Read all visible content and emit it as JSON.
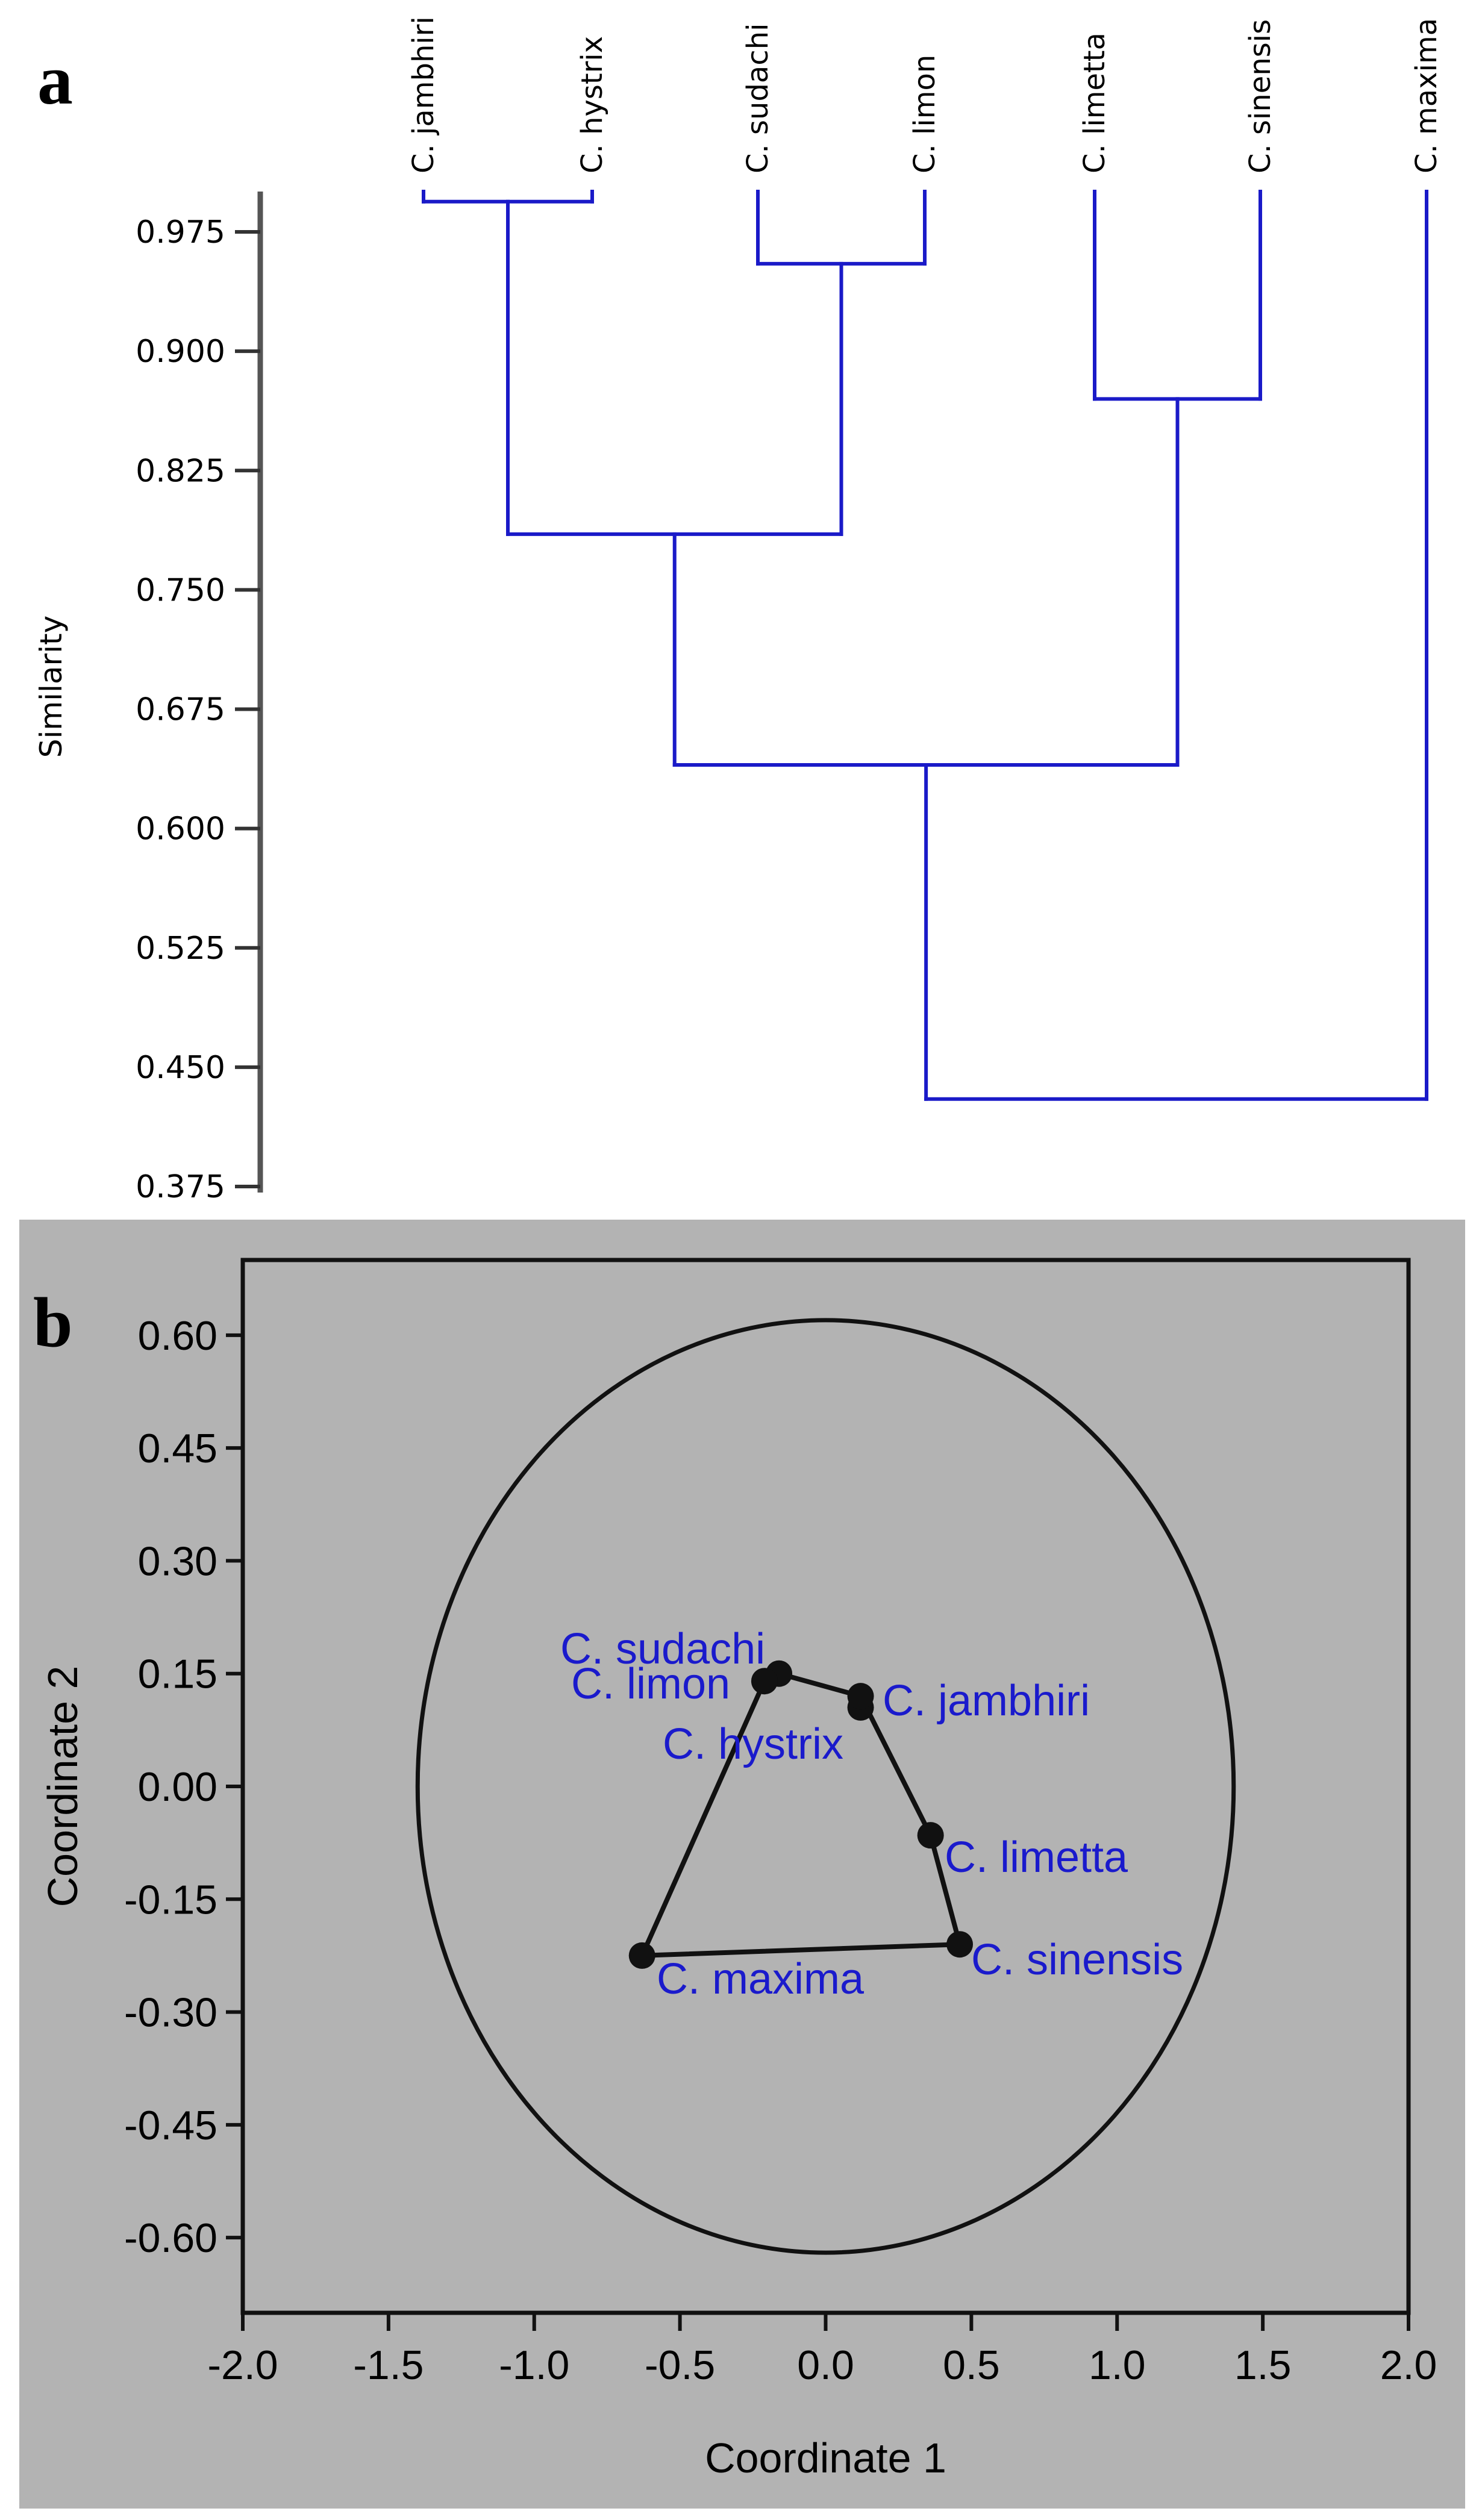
{
  "panels": {
    "a": "a",
    "b": "b"
  },
  "chart_data": [
    {
      "type": "dendrogram",
      "ylabel": "Similarity",
      "ylim": [
        0.375,
        0.99
      ],
      "yticks": [
        "0.975",
        "0.900",
        "0.825",
        "0.750",
        "0.675",
        "0.600",
        "0.525",
        "0.450",
        "0.375"
      ],
      "leaves": [
        "C. jambhiri",
        "C. hystrix",
        "C. sudachi",
        "C. limon",
        "C. limetta",
        "C. sinensis",
        "C. maxima"
      ],
      "merges": [
        {
          "left": 0,
          "right": 1,
          "similarity": 0.994
        },
        {
          "left": 2,
          "right": 3,
          "similarity": 0.955
        },
        {
          "left": 4,
          "right": 5,
          "similarity": 0.87
        },
        {
          "left": 7,
          "right": 8,
          "similarity": 0.785
        },
        {
          "left": 10,
          "right": 9,
          "similarity": 0.64
        },
        {
          "left": 11,
          "right": 6,
          "similarity": 0.43
        }
      ],
      "line_color": "#1a1ac8"
    },
    {
      "type": "scatter",
      "xlabel": "Coordinate 1",
      "ylabel": "Coordinate 2",
      "xlim": [
        -2.0,
        2.0
      ],
      "ylim": [
        -0.7,
        0.7
      ],
      "xticks": [
        "-2.0",
        "-1.5",
        "-1.0",
        "-0.5",
        "0.0",
        "0.5",
        "1.0",
        "1.5",
        "2.0"
      ],
      "yticks": [
        "0.60",
        "0.45",
        "0.30",
        "0.15",
        "0.00",
        "-0.15",
        "-0.30",
        "-0.45",
        "-0.60"
      ],
      "points": [
        {
          "label": "C. sudachi",
          "x": -0.16,
          "y": 0.15
        },
        {
          "label": "C. limon",
          "x": -0.21,
          "y": 0.14
        },
        {
          "label": "C. hystrix",
          "x": 0.12,
          "y": 0.105
        },
        {
          "label": "C. jambhiri",
          "x": 0.12,
          "y": 0.12
        },
        {
          "label": "C. limetta",
          "x": 0.36,
          "y": -0.065
        },
        {
          "label": "C. sinensis",
          "x": 0.46,
          "y": -0.21
        },
        {
          "label": "C. maxima",
          "x": -0.63,
          "y": -0.225
        }
      ],
      "hull_order": [
        "C. limon",
        "C. sudachi",
        "C. jambhiri",
        "C. limetta",
        "C. sinensis",
        "C. maxima"
      ],
      "ellipse": {
        "cx": 0.0,
        "cy": 0.0,
        "rx": 1.4,
        "ry": 0.62
      },
      "background": "#b3b3b3",
      "label_color": "#1a1acc"
    }
  ]
}
